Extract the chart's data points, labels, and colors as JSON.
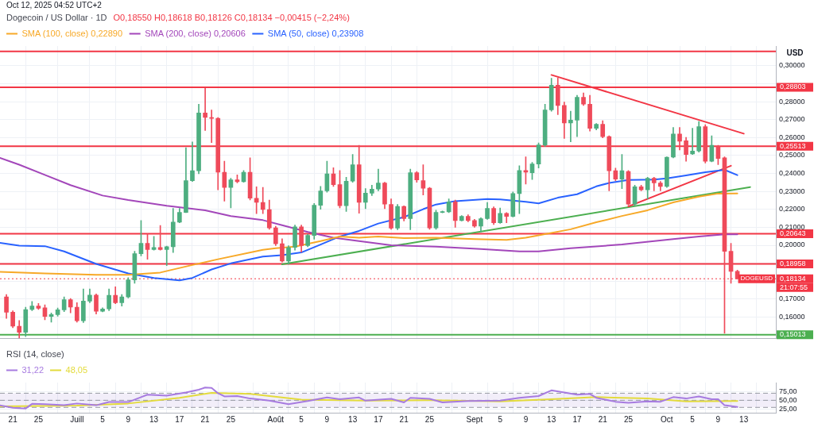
{
  "chart_data": [
    {
      "type": "candlestick",
      "title": "Dogecoin / US Dollar · 1D",
      "subtitle": "O0,18550 H0,18618 B0,18126 C0,18134 −0,00415 (−2,24%)",
      "ylabel": "USD",
      "annotations": [
        "Oct 12, 2025 04:52 UTC+2",
        {
          "text": "DOGEUSD",
          "x": "2025-10-15",
          "y": 0.18134
        },
        "21:07:55"
      ],
      "x": [
        "2025-06-20",
        "2025-06-21",
        "2025-06-22",
        "2025-06-23",
        "2025-06-24",
        "2025-06-25",
        "2025-06-26",
        "2025-06-27",
        "2025-06-28",
        "2025-06-29",
        "2025-06-30",
        "2025-07-01",
        "2025-07-02",
        "2025-07-03",
        "2025-07-04",
        "2025-07-05",
        "2025-07-06",
        "2025-07-07",
        "2025-07-08",
        "2025-07-09",
        "2025-07-10",
        "2025-07-11",
        "2025-07-12",
        "2025-07-13",
        "2025-07-14",
        "2025-07-15",
        "2025-07-16",
        "2025-07-17",
        "2025-07-18",
        "2025-07-19",
        "2025-07-20",
        "2025-07-21",
        "2025-07-22",
        "2025-07-23",
        "2025-07-24",
        "2025-07-25",
        "2025-07-26",
        "2025-07-27",
        "2025-07-28",
        "2025-07-29",
        "2025-07-30",
        "2025-07-31",
        "2025-08-01",
        "2025-08-02",
        "2025-08-03",
        "2025-08-04",
        "2025-08-05",
        "2025-08-06",
        "2025-08-07",
        "2025-08-08",
        "2025-08-09",
        "2025-08-10",
        "2025-08-11",
        "2025-08-12",
        "2025-08-13",
        "2025-08-14",
        "2025-08-15",
        "2025-08-16",
        "2025-08-17",
        "2025-08-18",
        "2025-08-19",
        "2025-08-20",
        "2025-08-21",
        "2025-08-22",
        "2025-08-23",
        "2025-08-24",
        "2025-08-25",
        "2025-08-26",
        "2025-08-27",
        "2025-08-28",
        "2025-08-29",
        "2025-08-30",
        "2025-08-31",
        "2025-09-01",
        "2025-09-02",
        "2025-09-03",
        "2025-09-04",
        "2025-09-05",
        "2025-09-06",
        "2025-09-07",
        "2025-09-08",
        "2025-09-09",
        "2025-09-10",
        "2025-09-11",
        "2025-09-12",
        "2025-09-13",
        "2025-09-14",
        "2025-09-15",
        "2025-09-16",
        "2025-09-17",
        "2025-09-18",
        "2025-09-19",
        "2025-09-20",
        "2025-09-21",
        "2025-09-22",
        "2025-09-23",
        "2025-09-24",
        "2025-09-25",
        "2025-09-26",
        "2025-09-27",
        "2025-09-28",
        "2025-09-29",
        "2025-09-30",
        "2025-10-01",
        "2025-10-02",
        "2025-10-03",
        "2025-10-04",
        "2025-10-05",
        "2025-10-06",
        "2025-10-07",
        "2025-10-08",
        "2025-10-09",
        "2025-10-10",
        "2025-10-11",
        "2025-10-12"
      ],
      "ohlc": [
        [
          0.1712,
          0.1725,
          0.1592,
          0.1627
        ],
        [
          0.1627,
          0.1635,
          0.1541,
          0.1549
        ],
        [
          0.1549,
          0.1581,
          0.1483,
          0.1515
        ],
        [
          0.1515,
          0.1655,
          0.1492,
          0.1642
        ],
        [
          0.1642,
          0.1687,
          0.1636,
          0.1661
        ],
        [
          0.1661,
          0.1676,
          0.1642,
          0.1649
        ],
        [
          0.1651,
          0.1668,
          0.1585,
          0.1604
        ],
        [
          0.1604,
          0.1623,
          0.1572,
          0.1614
        ],
        [
          0.1614,
          0.165,
          0.1605,
          0.164
        ],
        [
          0.164,
          0.1712,
          0.163,
          0.1697
        ],
        [
          0.1697,
          0.1703,
          0.1623,
          0.1655
        ],
        [
          0.1655,
          0.168,
          0.1572,
          0.1579
        ],
        [
          0.1579,
          0.1757,
          0.1569,
          0.1689
        ],
        [
          0.1689,
          0.1757,
          0.168,
          0.1722
        ],
        [
          0.1722,
          0.1729,
          0.1617,
          0.1632
        ],
        [
          0.1632,
          0.1652,
          0.1629,
          0.1645
        ],
        [
          0.1645,
          0.1757,
          0.1636,
          0.1721
        ],
        [
          0.1721,
          0.1769,
          0.1674,
          0.168
        ],
        [
          0.168,
          0.1725,
          0.1661,
          0.1712
        ],
        [
          0.1712,
          0.182,
          0.1706,
          0.1807
        ],
        [
          0.1807,
          0.1966,
          0.1788,
          0.1953
        ],
        [
          0.1953,
          0.2138,
          0.1941,
          0.2011
        ],
        [
          0.2011,
          0.2064,
          0.1922,
          0.1976
        ],
        [
          0.1976,
          0.2049,
          0.1973,
          0.1988
        ],
        [
          0.1988,
          0.211,
          0.1973,
          0.1976
        ],
        [
          0.1976,
          0.1995,
          0.1886,
          0.1992
        ],
        [
          0.1992,
          0.2205,
          0.196,
          0.2129
        ],
        [
          0.2129,
          0.2205,
          0.2125,
          0.2183
        ],
        [
          0.2183,
          0.2544,
          0.2182,
          0.236
        ],
        [
          0.236,
          0.2576,
          0.2355,
          0.2415
        ],
        [
          0.2415,
          0.2786,
          0.2398,
          0.2737
        ],
        [
          0.2737,
          0.2874,
          0.2639,
          0.2712
        ],
        [
          0.2712,
          0.2754,
          0.2572,
          0.2707
        ],
        [
          0.2707,
          0.2712,
          0.2309,
          0.2407
        ],
        [
          0.2407,
          0.2468,
          0.2246,
          0.2322
        ],
        [
          0.2322,
          0.2373,
          0.2208,
          0.2364
        ],
        [
          0.2364,
          0.2392,
          0.2347,
          0.2354
        ],
        [
          0.2354,
          0.2417,
          0.2351,
          0.2407
        ],
        [
          0.2407,
          0.2487,
          0.2252,
          0.2262
        ],
        [
          0.2262,
          0.2326,
          0.2176,
          0.2239
        ],
        [
          0.2239,
          0.2322,
          0.2176,
          0.2199
        ],
        [
          0.2199,
          0.2252,
          0.2089,
          0.2097
        ],
        [
          0.2097,
          0.2106,
          0.1998,
          0.2008
        ],
        [
          0.2008,
          0.2036,
          0.1906,
          0.1912
        ],
        [
          0.1912,
          0.1998,
          0.1894,
          0.1988
        ],
        [
          0.1988,
          0.2112,
          0.1973,
          0.2103
        ],
        [
          0.2103,
          0.2112,
          0.1962,
          0.1998
        ],
        [
          0.1998,
          0.2061,
          0.1992,
          0.2055
        ],
        [
          0.2055,
          0.2233,
          0.2034,
          0.2223
        ],
        [
          0.2223,
          0.2328,
          0.2201,
          0.2303
        ],
        [
          0.2303,
          0.2468,
          0.2296,
          0.2398
        ],
        [
          0.2398,
          0.2432,
          0.2328,
          0.2338
        ],
        [
          0.2338,
          0.2417,
          0.2208,
          0.222
        ],
        [
          0.222,
          0.2379,
          0.2188,
          0.2357
        ],
        [
          0.2357,
          0.2506,
          0.2351,
          0.2449
        ],
        [
          0.2449,
          0.2557,
          0.2178,
          0.2239
        ],
        [
          0.2239,
          0.2316,
          0.2204,
          0.229
        ],
        [
          0.229,
          0.2335,
          0.2277,
          0.2313
        ],
        [
          0.2313,
          0.2424,
          0.2303,
          0.2347
        ],
        [
          0.2347,
          0.2351,
          0.2204,
          0.2229
        ],
        [
          0.2227,
          0.2258,
          0.2089,
          0.2096
        ],
        [
          0.2096,
          0.2227,
          0.2087,
          0.2216
        ],
        [
          0.2216,
          0.222,
          0.2135,
          0.2148
        ],
        [
          0.2148,
          0.2424,
          0.2087,
          0.2404
        ],
        [
          0.2404,
          0.2411,
          0.2351,
          0.2364
        ],
        [
          0.236,
          0.2449,
          0.228,
          0.2318
        ],
        [
          0.2318,
          0.2322,
          0.2089,
          0.2097
        ],
        [
          0.2097,
          0.2195,
          0.2089,
          0.2183
        ],
        [
          0.2183,
          0.2191,
          0.2181,
          0.2186
        ],
        [
          0.2186,
          0.2258,
          0.2182,
          0.2242
        ],
        [
          0.2242,
          0.2252,
          0.21,
          0.2138
        ],
        [
          0.2138,
          0.2166,
          0.2135,
          0.2161
        ],
        [
          0.2161,
          0.217,
          0.2131,
          0.2138
        ],
        [
          0.2138,
          0.2144,
          0.21,
          0.2106
        ],
        [
          0.2106,
          0.2153,
          0.2074,
          0.2148
        ],
        [
          0.2148,
          0.2239,
          0.2144,
          0.2205
        ],
        [
          0.2205,
          0.2214,
          0.2115,
          0.2125
        ],
        [
          0.2125,
          0.2208,
          0.2122,
          0.2178
        ],
        [
          0.2178,
          0.2182,
          0.2125,
          0.2161
        ],
        [
          0.2161,
          0.2297,
          0.2157,
          0.2288
        ],
        [
          0.2288,
          0.2443,
          0.2176,
          0.2417
        ],
        [
          0.2417,
          0.2493,
          0.2341,
          0.2407
        ],
        [
          0.2404,
          0.2462,
          0.2366,
          0.2453
        ],
        [
          0.2453,
          0.257,
          0.243,
          0.2559
        ],
        [
          0.2559,
          0.2786,
          0.2551,
          0.2754
        ],
        [
          0.2754,
          0.293,
          0.2747,
          0.2892
        ],
        [
          0.2892,
          0.2932,
          0.2728,
          0.2779
        ],
        [
          0.2779,
          0.2798,
          0.2595,
          0.2681
        ],
        [
          0.2681,
          0.2747,
          0.2576,
          0.2697
        ],
        [
          0.2697,
          0.2836,
          0.2605,
          0.2824
        ],
        [
          0.2824,
          0.2849,
          0.2779,
          0.2786
        ],
        [
          0.2786,
          0.2836,
          0.2636,
          0.2652
        ],
        [
          0.2652,
          0.2678,
          0.2643,
          0.2674
        ],
        [
          0.2674,
          0.2694,
          0.2598,
          0.2605
        ],
        [
          0.2605,
          0.261,
          0.2303,
          0.2415
        ],
        [
          0.2415,
          0.243,
          0.236,
          0.2369
        ],
        [
          0.2369,
          0.2506,
          0.2316,
          0.2415
        ],
        [
          0.2411,
          0.2417,
          0.2224,
          0.2229
        ],
        [
          0.2229,
          0.2335,
          0.222,
          0.2326
        ],
        [
          0.2326,
          0.2335,
          0.2303,
          0.2309
        ],
        [
          0.2309,
          0.2379,
          0.2258,
          0.2373
        ],
        [
          0.2373,
          0.2379,
          0.2303,
          0.2347
        ],
        [
          0.2347,
          0.2356,
          0.2303,
          0.2328
        ],
        [
          0.2328,
          0.2493,
          0.2322,
          0.2491
        ],
        [
          0.2491,
          0.2656,
          0.2487,
          0.262
        ],
        [
          0.262,
          0.2656,
          0.2531,
          0.258
        ],
        [
          0.2582,
          0.2601,
          0.2468,
          0.2506
        ],
        [
          0.2509,
          0.2652,
          0.2506,
          0.2525
        ],
        [
          0.2525,
          0.269,
          0.2519,
          0.2661
        ],
        [
          0.2661,
          0.2672,
          0.2458,
          0.2468
        ],
        [
          0.2468,
          0.261,
          0.2465,
          0.2557
        ],
        [
          0.2551,
          0.2557,
          0.2449,
          0.2483
        ],
        [
          0.2487,
          0.2493,
          0.1509,
          0.1966
        ],
        [
          0.1966,
          0.2011,
          0.1788,
          0.1855
        ],
        [
          0.1855,
          0.18618,
          0.18126,
          0.18134
        ]
      ],
      "colors": [
        "#ef4a5a",
        "#ef4a5a",
        "#ef4a5a",
        "#4dae80",
        "#4dae80",
        "#ef4a5a",
        "#ef4a5a",
        "#4dae80",
        "#4dae80",
        "#4dae80",
        "#ef4a5a",
        "#ef4a5a",
        "#4dae80",
        "#4dae80",
        "#ef4a5a",
        "#4dae80",
        "#4dae80",
        "#ef4a5a",
        "#4dae80",
        "#4dae80",
        "#4dae80",
        "#4dae80",
        "#ef4a5a",
        "#4dae80",
        "#ef4a5a",
        "#4dae80",
        "#4dae80",
        "#4dae80",
        "#4dae80",
        "#4dae80",
        "#4dae80",
        "#ef4a5a",
        "#ef4a5a",
        "#ef4a5a",
        "#ef4a5a",
        "#4dae80",
        "#ef4a5a",
        "#4dae80",
        "#ef4a5a",
        "#ef4a5a",
        "#ef4a5a",
        "#ef4a5a",
        "#ef4a5a",
        "#ef4a5a",
        "#4dae80",
        "#4dae80",
        "#ef4a5a",
        "#4dae80",
        "#4dae80",
        "#4dae80",
        "#4dae80",
        "#ef4a5a",
        "#ef4a5a",
        "#4dae80",
        "#4dae80",
        "#ef4a5a",
        "#4dae80",
        "#4dae80",
        "#4dae80",
        "#ef4a5a",
        "#ef4a5a",
        "#4dae80",
        "#ef4a5a",
        "#4dae80",
        "#ef4a5a",
        "#ef4a5a",
        "#ef4a5a",
        "#4dae80",
        "#4dae80",
        "#4dae80",
        "#ef4a5a",
        "#4dae80",
        "#ef4a5a",
        "#ef4a5a",
        "#4dae80",
        "#4dae80",
        "#ef4a5a",
        "#4dae80",
        "#ef4a5a",
        "#4dae80",
        "#4dae80",
        "#ef4a5a",
        "#4dae80",
        "#4dae80",
        "#4dae80",
        "#4dae80",
        "#ef4a5a",
        "#ef4a5a",
        "#4dae80",
        "#4dae80",
        "#ef4a5a",
        "#ef4a5a",
        "#4dae80",
        "#ef4a5a",
        "#ef4a5a",
        "#ef4a5a",
        "#4dae80",
        "#ef4a5a",
        "#4dae80",
        "#ef4a5a",
        "#4dae80",
        "#ef4a5a",
        "#ef4a5a",
        "#4dae80",
        "#4dae80",
        "#ef4a5a",
        "#ef4a5a",
        "#4dae80",
        "#4dae80",
        "#ef4a5a",
        "#4dae80",
        "#ef4a5a",
        "#ef4a5a",
        "#ef4a5a",
        "#ef4a5a"
      ],
      "series": [
        {
          "name": "SMA (100, close) 0,22890",
          "type": "line",
          "color": "#f7a928",
          "x": [
            "2025-06-19",
            "2025-06-26",
            "2025-07-04",
            "2025-07-09",
            "2025-07-14",
            "2025-07-19",
            "2025-07-23",
            "2025-07-30",
            "2025-08-01",
            "2025-08-04",
            "2025-08-08",
            "2025-08-11",
            "2025-08-14",
            "2025-08-17",
            "2025-08-21",
            "2025-08-26",
            "2025-09-01",
            "2025-09-06",
            "2025-09-09",
            "2025-09-11",
            "2025-09-16",
            "2025-09-20",
            "2025-09-24",
            "2025-09-28",
            "2025-10-02",
            "2025-10-06",
            "2025-10-09",
            "2025-10-12"
          ],
          "values": [
            0.1852,
            0.1843,
            0.1835,
            0.1835,
            0.1848,
            0.189,
            0.1922,
            0.1975,
            0.1983,
            0.1992,
            0.2023,
            0.2049,
            0.2042,
            0.2049,
            0.204,
            0.2042,
            0.2034,
            0.203,
            0.2042,
            0.2055,
            0.2089,
            0.2128,
            0.2163,
            0.2195,
            0.2239,
            0.2271,
            0.2288,
            0.2289
          ]
        },
        {
          "name": "SMA (200, close) 0,20606",
          "type": "line",
          "color": "#a347ba",
          "x": [
            "2025-06-19",
            "2025-06-22",
            "2025-06-26",
            "2025-06-30",
            "2025-07-05",
            "2025-07-09",
            "2025-07-15",
            "2025-07-21",
            "2025-07-25",
            "2025-07-30",
            "2025-08-02",
            "2025-08-06",
            "2025-08-10",
            "2025-08-14",
            "2025-08-19",
            "2025-08-26",
            "2025-09-02",
            "2025-09-08",
            "2025-09-11",
            "2025-09-16",
            "2025-09-24",
            "2025-10-02",
            "2025-10-06",
            "2025-10-10",
            "2025-10-12"
          ],
          "values": [
            0.2487,
            0.2449,
            0.2392,
            0.2335,
            0.2277,
            0.2252,
            0.222,
            0.2195,
            0.2163,
            0.214,
            0.2112,
            0.2074,
            0.2042,
            0.2023,
            0.2,
            0.1992,
            0.1979,
            0.1966,
            0.1966,
            0.1983,
            0.2004,
            0.2034,
            0.2049,
            0.2061,
            0.2061
          ]
        },
        {
          "name": "SMA (50, close) 0,23908",
          "type": "line",
          "color": "#2962ff",
          "x": [
            "2025-06-19",
            "2025-06-22",
            "2025-06-26",
            "2025-06-29",
            "2025-07-04",
            "2025-07-09",
            "2025-07-13",
            "2025-07-17",
            "2025-07-19",
            "2025-07-22",
            "2025-07-25",
            "2025-07-30",
            "2025-08-02",
            "2025-08-05",
            "2025-08-08",
            "2025-08-11",
            "2025-08-14",
            "2025-08-17",
            "2025-08-21",
            "2025-08-24",
            "2025-08-26",
            "2025-08-29",
            "2025-09-03",
            "2025-09-05",
            "2025-09-09",
            "2025-09-11",
            "2025-09-14",
            "2025-09-17",
            "2025-09-20",
            "2025-09-22",
            "2025-09-25",
            "2025-09-29",
            "2025-10-01",
            "2025-10-04",
            "2025-10-07",
            "2025-10-10",
            "2025-10-12"
          ],
          "values": [
            0.2013,
            0.1998,
            0.1995,
            0.1966,
            0.1896,
            0.1843,
            0.1818,
            0.1804,
            0.1818,
            0.1865,
            0.1899,
            0.1937,
            0.1945,
            0.196,
            0.2004,
            0.2049,
            0.208,
            0.2121,
            0.2157,
            0.2201,
            0.2227,
            0.2246,
            0.2258,
            0.2255,
            0.2242,
            0.2233,
            0.2265,
            0.2284,
            0.2328,
            0.2347,
            0.2364,
            0.2366,
            0.2373,
            0.2389,
            0.2407,
            0.242,
            0.2391
          ]
        },
        {
          "type": "line",
          "color": "#f23645",
          "x": [
            "2025-09-13",
            "2025-10-13"
          ],
          "values": [
            0.2949,
            0.2622
          ]
        },
        {
          "type": "line",
          "color": "#f23645",
          "x": [
            "2025-09-25",
            "2025-10-11"
          ],
          "values": [
            0.2216,
            0.2443
          ]
        },
        {
          "type": "line",
          "color": "#4caf50",
          "x": [
            "2025-08-02",
            "2025-10-14"
          ],
          "values": [
            0.1894,
            0.2324
          ]
        }
      ],
      "xlim": [
        "2025-06-19",
        "2025-10-18"
      ],
      "ylim": [
        0.148,
        0.311
      ],
      "xticks": [
        {
          "value": "2025-06-21",
          "label": null
        },
        {
          "value": "2025-06-25",
          "label": null
        },
        {
          "value": "2025-07-01",
          "label": null
        },
        {
          "value": "2025-07-05",
          "label": null
        },
        {
          "value": "2025-07-09",
          "label": null
        },
        {
          "value": "2025-07-13",
          "label": null
        },
        {
          "value": "2025-07-17",
          "label": null
        },
        {
          "value": "2025-07-21",
          "label": null
        },
        {
          "value": "2025-07-25",
          "label": null
        },
        {
          "value": "2025-08-01",
          "label": null
        },
        {
          "value": "2025-08-05",
          "label": null
        },
        {
          "value": "2025-08-09",
          "label": null
        },
        {
          "value": "2025-08-13",
          "label": null
        },
        {
          "value": "2025-08-17",
          "label": null
        },
        {
          "value": "2025-08-21",
          "label": null
        },
        {
          "value": "2025-08-25",
          "label": null
        },
        {
          "value": "2025-09-01",
          "label": null
        },
        {
          "value": "2025-09-05",
          "label": null
        },
        {
          "value": "2025-09-09",
          "label": null
        },
        {
          "value": "2025-09-13",
          "label": null
        },
        {
          "value": "2025-09-17",
          "label": null
        },
        {
          "value": "2025-09-21",
          "label": null
        },
        {
          "value": "2025-09-25",
          "label": null
        },
        {
          "value": "2025-10-01",
          "label": null
        },
        {
          "value": "2025-10-05",
          "label": null
        },
        {
          "value": "2025-10-09",
          "label": null
        },
        {
          "value": "2025-10-13",
          "label": null
        }
      ],
      "yticks": [
        {
          "value": 0.16,
          "label": "0,16000"
        },
        {
          "value": 0.17,
          "label": "0,17000"
        },
        {
          "value": 0.18,
          "label": null
        },
        {
          "value": 0.19,
          "label": null
        },
        {
          "value": 0.2,
          "label": "0,20000"
        },
        {
          "value": 0.21,
          "label": "0,21000"
        },
        {
          "value": 0.22,
          "label": "0,22000"
        },
        {
          "value": 0.23,
          "label": "0,23000"
        },
        {
          "value": 0.24,
          "label": "0,24000"
        },
        {
          "value": 0.25,
          "label": "0,25000"
        },
        {
          "value": 0.26,
          "label": "0,26000"
        },
        {
          "value": 0.27,
          "label": "0,27000"
        },
        {
          "value": 0.28,
          "label": "0,28000"
        },
        {
          "value": 0.29,
          "label": null
        },
        {
          "value": 0.3,
          "label": "0,30000"
        }
      ],
      "ref_lines": [
        {
          "axis": "y",
          "value": 0.308,
          "color": "#f23645"
        },
        {
          "axis": "y",
          "value": 0.28803,
          "label": "0,28803",
          "color": "#f23645"
        },
        {
          "axis": "y",
          "value": 0.25513,
          "label": "0,25513",
          "color": "#f23645"
        },
        {
          "axis": "y",
          "value": 0.20643,
          "label": "0,20643",
          "color": "#f23645"
        },
        {
          "axis": "y",
          "value": 0.18958,
          "label": "0,18958",
          "color": "#f23645"
        },
        {
          "axis": "y",
          "value": 0.15013,
          "label": "0,15013",
          "color": "#4caf50"
        },
        {
          "axis": "y",
          "value": 0.18134,
          "label": "0,18134",
          "color": "#f23645",
          "line_style": "dotted"
        }
      ],
      "grid": true,
      "legend": "top left",
      "tick_labels": "y"
    },
    {
      "type": "line",
      "title": "RSI (14, close)",
      "series": [
        {
          "name": "31,22",
          "color": "#a77be0",
          "x": [
            "2025-06-19",
            "2025-06-21",
            "2025-06-23",
            "2025-06-24",
            "2025-06-26",
            "2025-06-29",
            "2025-07-01",
            "2025-07-04",
            "2025-07-06",
            "2025-07-09",
            "2025-07-11",
            "2025-07-12",
            "2025-07-15",
            "2025-07-18",
            "2025-07-20",
            "2025-07-21",
            "2025-07-22",
            "2025-07-23",
            "2025-07-24",
            "2025-07-26",
            "2025-07-28",
            "2025-07-31",
            "2025-08-03",
            "2025-08-06",
            "2025-08-09",
            "2025-08-11",
            "2025-08-14",
            "2025-08-15",
            "2025-08-19",
            "2025-08-21",
            "2025-08-22",
            "2025-08-25",
            "2025-08-27",
            "2025-08-31",
            "2025-09-05",
            "2025-09-08",
            "2025-09-11",
            "2025-09-13",
            "2025-09-17",
            "2025-09-19",
            "2025-09-20",
            "2025-09-23",
            "2025-09-25",
            "2025-09-28",
            "2025-09-30",
            "2025-10-02",
            "2025-10-04",
            "2025-10-06",
            "2025-10-08",
            "2025-10-09",
            "2025-10-10",
            "2025-10-12"
          ],
          "values": [
            36,
            29,
            27,
            40,
            39,
            36,
            41,
            36,
            45,
            45,
            59,
            66,
            63,
            72,
            80,
            86,
            85,
            70,
            61,
            62,
            55,
            49,
            39,
            48,
            58,
            53,
            58,
            49,
            54,
            44,
            57,
            54,
            44,
            48,
            49,
            57,
            62,
            78,
            66,
            68,
            57,
            46,
            43,
            47,
            46,
            59,
            55,
            61,
            53,
            53,
            36,
            31
          ]
        },
        {
          "name": "48,05",
          "color": "#e3db3c",
          "x": [
            "2025-06-19",
            "2025-07-01",
            "2025-07-09",
            "2025-07-17",
            "2025-07-22",
            "2025-07-28",
            "2025-08-05",
            "2025-08-15",
            "2025-08-25",
            "2025-09-05",
            "2025-09-13",
            "2025-09-20",
            "2025-09-28",
            "2025-10-04",
            "2025-10-12"
          ],
          "values": [
            33,
            35,
            41,
            57,
            71,
            68,
            52,
            49,
            50,
            47,
            53,
            59,
            55,
            47,
            48
          ]
        }
      ],
      "xlim": [
        "2025-06-19",
        "2025-10-18"
      ],
      "ylim": [
        15,
        100
      ],
      "xticks": [
        {
          "value": "2025-06-21",
          "label": "21"
        },
        {
          "value": "2025-06-25",
          "label": "25"
        },
        {
          "value": "2025-07-01",
          "label": "Juill"
        },
        {
          "value": "2025-07-05",
          "label": "5"
        },
        {
          "value": "2025-07-09",
          "label": "9"
        },
        {
          "value": "2025-07-13",
          "label": "13"
        },
        {
          "value": "2025-07-17",
          "label": "17"
        },
        {
          "value": "2025-07-21",
          "label": "21"
        },
        {
          "value": "2025-07-25",
          "label": "25"
        },
        {
          "value": "2025-08-01",
          "label": "Août"
        },
        {
          "value": "2025-08-05",
          "label": "5"
        },
        {
          "value": "2025-08-09",
          "label": "9"
        },
        {
          "value": "2025-08-13",
          "label": "13"
        },
        {
          "value": "2025-08-17",
          "label": "17"
        },
        {
          "value": "2025-08-21",
          "label": "21"
        },
        {
          "value": "2025-08-25",
          "label": "25"
        },
        {
          "value": "2025-09-01",
          "label": "Sept"
        },
        {
          "value": "2025-09-05",
          "label": "5"
        },
        {
          "value": "2025-09-09",
          "label": "9"
        },
        {
          "value": "2025-09-13",
          "label": "13"
        },
        {
          "value": "2025-09-17",
          "label": "17"
        },
        {
          "value": "2025-09-21",
          "label": "21"
        },
        {
          "value": "2025-09-25",
          "label": "25"
        },
        {
          "value": "2025-10-01",
          "label": "Oct"
        },
        {
          "value": "2025-10-05",
          "label": "5"
        },
        {
          "value": "2025-10-09",
          "label": "9"
        },
        {
          "value": "2025-10-13",
          "label": "13"
        }
      ],
      "yticks": [
        {
          "value": 25,
          "label": "25,00"
        },
        {
          "value": 50,
          "label": "50,00"
        },
        {
          "value": 75,
          "label": "75,00"
        }
      ],
      "bands": [
        {
          "axis": "y",
          "from": 30,
          "to": 70,
          "color": "#7e57c2"
        }
      ],
      "ref_lines": [
        {
          "axis": "y",
          "value": 70,
          "color": "#9598a1",
          "line_style": "dashed"
        },
        {
          "axis": "y",
          "value": 50,
          "color": "#9598a1",
          "line_style": "dashed"
        },
        {
          "axis": "y",
          "value": 30,
          "color": "#9598a1",
          "line_style": "dashed"
        }
      ],
      "grid": true,
      "legend": "top left"
    }
  ]
}
